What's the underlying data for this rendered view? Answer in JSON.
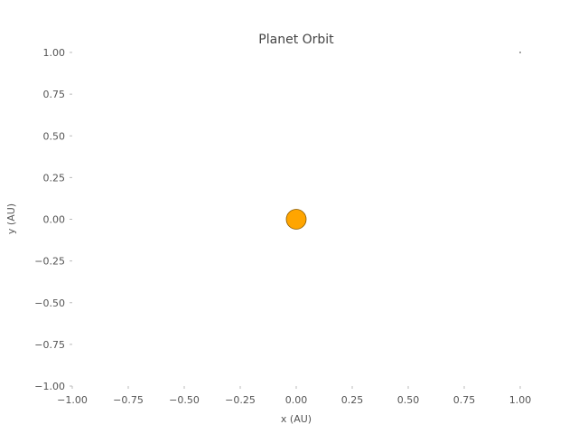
{
  "chart_data": {
    "type": "scatter",
    "title": "Planet Orbit",
    "xlabel": "x (AU)",
    "ylabel": "y (AU)",
    "xlim": [
      -1.0,
      1.0
    ],
    "ylim": [
      -1.0,
      1.0
    ],
    "x_ticks": [
      -1.0,
      -0.75,
      -0.5,
      -0.25,
      0.0,
      0.25,
      0.5,
      0.75,
      1.0
    ],
    "y_ticks": [
      -1.0,
      -0.75,
      -0.5,
      -0.25,
      0.0,
      0.25,
      0.5,
      0.75,
      1.0
    ],
    "x_tick_labels": [
      "−1.00",
      "−0.75",
      "−0.50",
      "−0.25",
      "0.00",
      "0.25",
      "0.50",
      "0.75",
      "1.00"
    ],
    "y_tick_labels": [
      "−1.00",
      "−0.75",
      "−0.50",
      "−0.25",
      "0.00",
      "0.25",
      "0.50",
      "0.75",
      "1.00"
    ],
    "grid": false,
    "series": [
      {
        "points": [
          {
            "x": 0.0,
            "y": 0.0
          }
        ],
        "color": "#ffa500",
        "edge_color": "#8a5a00"
      },
      {
        "points": [
          {
            "x": 1.0,
            "y": 1.0
          }
        ],
        "color": "#888888"
      }
    ]
  }
}
